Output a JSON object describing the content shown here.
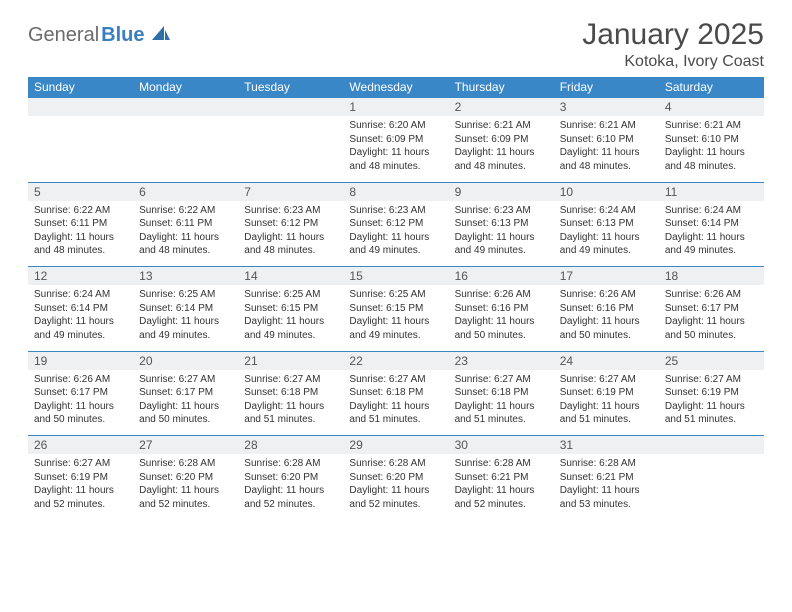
{
  "logo": {
    "part1": "General",
    "part2": "Blue"
  },
  "title": "January 2025",
  "location": "Kotoka, Ivory Coast",
  "colors": {
    "header_bg": "#3a87c8",
    "header_text": "#ffffff",
    "daynum_bg": "#eef0f2",
    "border": "#3a87c8",
    "logo_gray": "#6b6b6b",
    "logo_blue": "#3a7fbf"
  },
  "weekdays": [
    "Sunday",
    "Monday",
    "Tuesday",
    "Wednesday",
    "Thursday",
    "Friday",
    "Saturday"
  ],
  "weeks": [
    {
      "nums": [
        "",
        "",
        "",
        "1",
        "2",
        "3",
        "4"
      ],
      "cells": [
        null,
        null,
        null,
        {
          "sunrise": "Sunrise: 6:20 AM",
          "sunset": "Sunset: 6:09 PM",
          "d1": "Daylight: 11 hours",
          "d2": "and 48 minutes."
        },
        {
          "sunrise": "Sunrise: 6:21 AM",
          "sunset": "Sunset: 6:09 PM",
          "d1": "Daylight: 11 hours",
          "d2": "and 48 minutes."
        },
        {
          "sunrise": "Sunrise: 6:21 AM",
          "sunset": "Sunset: 6:10 PM",
          "d1": "Daylight: 11 hours",
          "d2": "and 48 minutes."
        },
        {
          "sunrise": "Sunrise: 6:21 AM",
          "sunset": "Sunset: 6:10 PM",
          "d1": "Daylight: 11 hours",
          "d2": "and 48 minutes."
        }
      ]
    },
    {
      "nums": [
        "5",
        "6",
        "7",
        "8",
        "9",
        "10",
        "11"
      ],
      "cells": [
        {
          "sunrise": "Sunrise: 6:22 AM",
          "sunset": "Sunset: 6:11 PM",
          "d1": "Daylight: 11 hours",
          "d2": "and 48 minutes."
        },
        {
          "sunrise": "Sunrise: 6:22 AM",
          "sunset": "Sunset: 6:11 PM",
          "d1": "Daylight: 11 hours",
          "d2": "and 48 minutes."
        },
        {
          "sunrise": "Sunrise: 6:23 AM",
          "sunset": "Sunset: 6:12 PM",
          "d1": "Daylight: 11 hours",
          "d2": "and 48 minutes."
        },
        {
          "sunrise": "Sunrise: 6:23 AM",
          "sunset": "Sunset: 6:12 PM",
          "d1": "Daylight: 11 hours",
          "d2": "and 49 minutes."
        },
        {
          "sunrise": "Sunrise: 6:23 AM",
          "sunset": "Sunset: 6:13 PM",
          "d1": "Daylight: 11 hours",
          "d2": "and 49 minutes."
        },
        {
          "sunrise": "Sunrise: 6:24 AM",
          "sunset": "Sunset: 6:13 PM",
          "d1": "Daylight: 11 hours",
          "d2": "and 49 minutes."
        },
        {
          "sunrise": "Sunrise: 6:24 AM",
          "sunset": "Sunset: 6:14 PM",
          "d1": "Daylight: 11 hours",
          "d2": "and 49 minutes."
        }
      ]
    },
    {
      "nums": [
        "12",
        "13",
        "14",
        "15",
        "16",
        "17",
        "18"
      ],
      "cells": [
        {
          "sunrise": "Sunrise: 6:24 AM",
          "sunset": "Sunset: 6:14 PM",
          "d1": "Daylight: 11 hours",
          "d2": "and 49 minutes."
        },
        {
          "sunrise": "Sunrise: 6:25 AM",
          "sunset": "Sunset: 6:14 PM",
          "d1": "Daylight: 11 hours",
          "d2": "and 49 minutes."
        },
        {
          "sunrise": "Sunrise: 6:25 AM",
          "sunset": "Sunset: 6:15 PM",
          "d1": "Daylight: 11 hours",
          "d2": "and 49 minutes."
        },
        {
          "sunrise": "Sunrise: 6:25 AM",
          "sunset": "Sunset: 6:15 PM",
          "d1": "Daylight: 11 hours",
          "d2": "and 49 minutes."
        },
        {
          "sunrise": "Sunrise: 6:26 AM",
          "sunset": "Sunset: 6:16 PM",
          "d1": "Daylight: 11 hours",
          "d2": "and 50 minutes."
        },
        {
          "sunrise": "Sunrise: 6:26 AM",
          "sunset": "Sunset: 6:16 PM",
          "d1": "Daylight: 11 hours",
          "d2": "and 50 minutes."
        },
        {
          "sunrise": "Sunrise: 6:26 AM",
          "sunset": "Sunset: 6:17 PM",
          "d1": "Daylight: 11 hours",
          "d2": "and 50 minutes."
        }
      ]
    },
    {
      "nums": [
        "19",
        "20",
        "21",
        "22",
        "23",
        "24",
        "25"
      ],
      "cells": [
        {
          "sunrise": "Sunrise: 6:26 AM",
          "sunset": "Sunset: 6:17 PM",
          "d1": "Daylight: 11 hours",
          "d2": "and 50 minutes."
        },
        {
          "sunrise": "Sunrise: 6:27 AM",
          "sunset": "Sunset: 6:17 PM",
          "d1": "Daylight: 11 hours",
          "d2": "and 50 minutes."
        },
        {
          "sunrise": "Sunrise: 6:27 AM",
          "sunset": "Sunset: 6:18 PM",
          "d1": "Daylight: 11 hours",
          "d2": "and 51 minutes."
        },
        {
          "sunrise": "Sunrise: 6:27 AM",
          "sunset": "Sunset: 6:18 PM",
          "d1": "Daylight: 11 hours",
          "d2": "and 51 minutes."
        },
        {
          "sunrise": "Sunrise: 6:27 AM",
          "sunset": "Sunset: 6:18 PM",
          "d1": "Daylight: 11 hours",
          "d2": "and 51 minutes."
        },
        {
          "sunrise": "Sunrise: 6:27 AM",
          "sunset": "Sunset: 6:19 PM",
          "d1": "Daylight: 11 hours",
          "d2": "and 51 minutes."
        },
        {
          "sunrise": "Sunrise: 6:27 AM",
          "sunset": "Sunset: 6:19 PM",
          "d1": "Daylight: 11 hours",
          "d2": "and 51 minutes."
        }
      ]
    },
    {
      "nums": [
        "26",
        "27",
        "28",
        "29",
        "30",
        "31",
        ""
      ],
      "cells": [
        {
          "sunrise": "Sunrise: 6:27 AM",
          "sunset": "Sunset: 6:19 PM",
          "d1": "Daylight: 11 hours",
          "d2": "and 52 minutes."
        },
        {
          "sunrise": "Sunrise: 6:28 AM",
          "sunset": "Sunset: 6:20 PM",
          "d1": "Daylight: 11 hours",
          "d2": "and 52 minutes."
        },
        {
          "sunrise": "Sunrise: 6:28 AM",
          "sunset": "Sunset: 6:20 PM",
          "d1": "Daylight: 11 hours",
          "d2": "and 52 minutes."
        },
        {
          "sunrise": "Sunrise: 6:28 AM",
          "sunset": "Sunset: 6:20 PM",
          "d1": "Daylight: 11 hours",
          "d2": "and 52 minutes."
        },
        {
          "sunrise": "Sunrise: 6:28 AM",
          "sunset": "Sunset: 6:21 PM",
          "d1": "Daylight: 11 hours",
          "d2": "and 52 minutes."
        },
        {
          "sunrise": "Sunrise: 6:28 AM",
          "sunset": "Sunset: 6:21 PM",
          "d1": "Daylight: 11 hours",
          "d2": "and 53 minutes."
        },
        null
      ]
    }
  ]
}
